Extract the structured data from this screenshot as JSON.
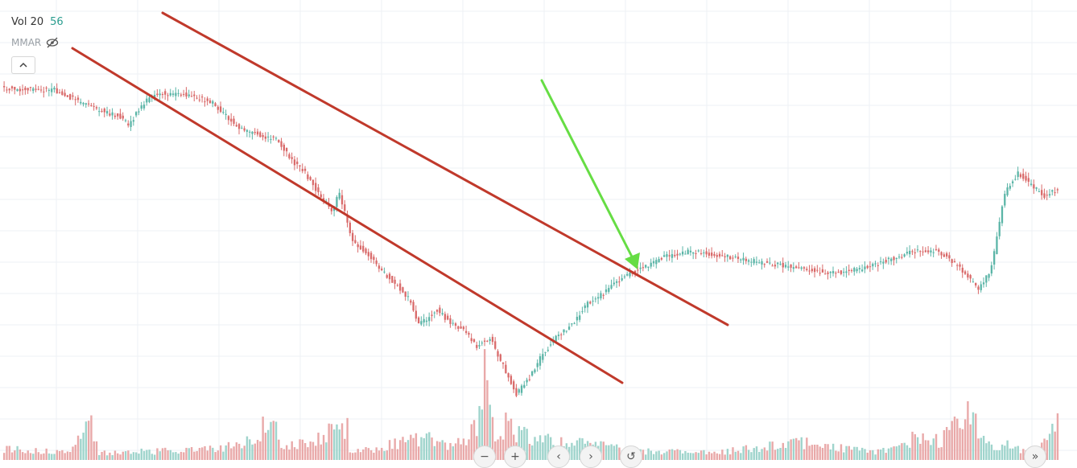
{
  "indicator": {
    "name": "Vol 20",
    "value": "56",
    "sub_label": "MMAR"
  },
  "icons": {
    "visibility": "eye-off-icon",
    "collapse": "chevron-up-icon"
  },
  "colors": {
    "up": "#5bb5a7",
    "down": "#d96a6a",
    "vol_up": "#9fd4cc",
    "vol_down": "#e9a9a9",
    "trendline": "#c0392b",
    "arrow": "#66dd44",
    "grid": "#eef1f4"
  },
  "nav_buttons": [
    "−",
    "+",
    "‹",
    "›",
    "↺",
    "»"
  ],
  "chart_data": {
    "type": "candlestick",
    "title": "",
    "xlabel": "",
    "ylabel": "",
    "anchors": [
      [
        0,
        110
      ],
      [
        20,
        112
      ],
      [
        35,
        135
      ],
      [
        45,
        145
      ],
      [
        48,
        155
      ],
      [
        55,
        125
      ],
      [
        60,
        115
      ],
      [
        70,
        118
      ],
      [
        80,
        128
      ],
      [
        90,
        160
      ],
      [
        100,
        170
      ],
      [
        105,
        175
      ],
      [
        110,
        200
      ],
      [
        115,
        215
      ],
      [
        120,
        240
      ],
      [
        125,
        262
      ],
      [
        128,
        240
      ],
      [
        133,
        300
      ],
      [
        140,
        320
      ],
      [
        145,
        340
      ],
      [
        150,
        355
      ],
      [
        155,
        375
      ],
      [
        158,
        405
      ],
      [
        165,
        385
      ],
      [
        170,
        402
      ],
      [
        175,
        410
      ],
      [
        180,
        430
      ],
      [
        185,
        420
      ],
      [
        190,
        455
      ],
      [
        195,
        490
      ],
      [
        200,
        470
      ],
      [
        205,
        440
      ],
      [
        210,
        420
      ],
      [
        217,
        400
      ],
      [
        221,
        380
      ],
      [
        228,
        365
      ],
      [
        235,
        345
      ],
      [
        242,
        335
      ],
      [
        250,
        320
      ],
      [
        262,
        312
      ],
      [
        272,
        318
      ],
      [
        285,
        325
      ],
      [
        300,
        332
      ],
      [
        315,
        340
      ],
      [
        325,
        335
      ],
      [
        335,
        325
      ],
      [
        345,
        312
      ],
      [
        355,
        312
      ],
      [
        365,
        340
      ],
      [
        370,
        362
      ],
      [
        375,
        332
      ],
      [
        380,
        240
      ],
      [
        385,
        215
      ],
      [
        390,
        230
      ],
      [
        395,
        245
      ],
      [
        400,
        235
      ]
    ],
    "volume_anchors": [
      [
        0,
        15
      ],
      [
        25,
        12
      ],
      [
        30,
        40
      ],
      [
        32,
        55
      ],
      [
        33,
        45
      ],
      [
        36,
        10
      ],
      [
        60,
        12
      ],
      [
        80,
        15
      ],
      [
        96,
        30
      ],
      [
        99,
        55
      ],
      [
        101,
        65
      ],
      [
        103,
        40
      ],
      [
        105,
        15
      ],
      [
        130,
        45
      ],
      [
        131,
        10
      ],
      [
        160,
        30
      ],
      [
        165,
        20
      ],
      [
        175,
        25
      ],
      [
        180,
        55
      ],
      [
        182,
        120
      ],
      [
        184,
        60
      ],
      [
        186,
        30
      ],
      [
        190,
        50
      ],
      [
        195,
        35
      ],
      [
        200,
        30
      ],
      [
        215,
        25
      ],
      [
        240,
        12
      ],
      [
        270,
        10
      ],
      [
        300,
        25
      ],
      [
        330,
        10
      ],
      [
        345,
        30
      ],
      [
        355,
        25
      ],
      [
        363,
        65
      ],
      [
        366,
        70
      ],
      [
        368,
        50
      ],
      [
        370,
        40
      ],
      [
        372,
        20
      ],
      [
        380,
        20
      ],
      [
        385,
        15
      ],
      [
        393,
        20
      ],
      [
        396,
        40
      ],
      [
        399,
        60
      ]
    ]
  }
}
